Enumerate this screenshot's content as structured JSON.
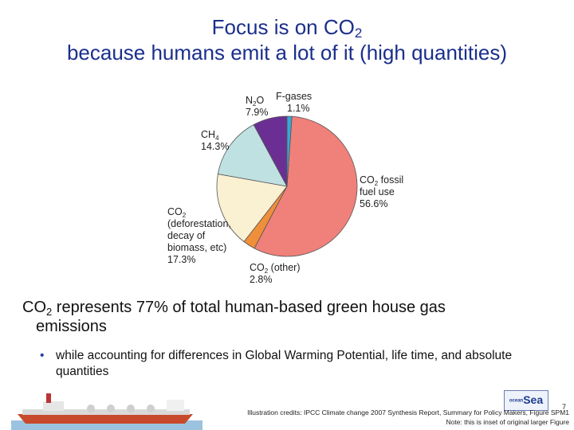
{
  "title": {
    "line1_prefix": "Focus is on CO",
    "line1_sub": "2",
    "line2": "because humans emit a lot of it (high quantities)"
  },
  "chart_data": {
    "type": "pie",
    "slices": [
      {
        "label": "CO2 fossil fuel use",
        "value": 56.6,
        "color": "#f0807a"
      },
      {
        "label": "CO2 (other)",
        "value": 2.8,
        "color": "#ef8f3a"
      },
      {
        "label": "CO2 (deforestation, decay of biomass, etc)",
        "value": 17.3,
        "color": "#faf0d2"
      },
      {
        "label": "CH4",
        "value": 14.3,
        "color": "#bfe1e1"
      },
      {
        "label": "N2O",
        "value": 7.9,
        "color": "#6b2f93"
      },
      {
        "label": "F-gases",
        "value": 1.1,
        "color": "#37a8d8"
      }
    ],
    "labels": {
      "fossil": {
        "l1a": "CO",
        "l1s": "2",
        "l1b": " fossil",
        "l2": "fuel use",
        "l3": "56.6%"
      },
      "other": {
        "l1a": "CO",
        "l1s": "2",
        "l1b": " (other)",
        "l2": "2.8%"
      },
      "defor": {
        "l1a": "CO",
        "l1s": "2",
        "l2": "(deforestation,",
        "l3": "decay of",
        "l4": "biomass, etc)",
        "l5": "17.3%"
      },
      "ch4": {
        "l1a": "CH",
        "l1s": "4",
        "l2": "14.3%"
      },
      "n2o": {
        "l1a": "N",
        "l1s": "2",
        "l1b": "O",
        "l2": "7.9%"
      },
      "fgas": {
        "l1": "F-gases",
        "l2": "1.1%"
      }
    }
  },
  "headline": {
    "prefix": "CO",
    "sub": "2",
    "rest": " represents 77% of total human-based green house gas",
    "line2": "emissions"
  },
  "bullet": {
    "dot": "•",
    "text": "while accounting for differences in Global Warming Potential, life time, and absolute quantities"
  },
  "footer": {
    "page": "7",
    "credit1": "Illustration credits: IPCC Climate change 2007 Synthesis Report, Summary for Policy Makers, Figure SPM1",
    "credit2": "Note: this is inset of original larger Figure"
  },
  "logo": {
    "text": "Sea",
    "prefix": "ocean"
  }
}
